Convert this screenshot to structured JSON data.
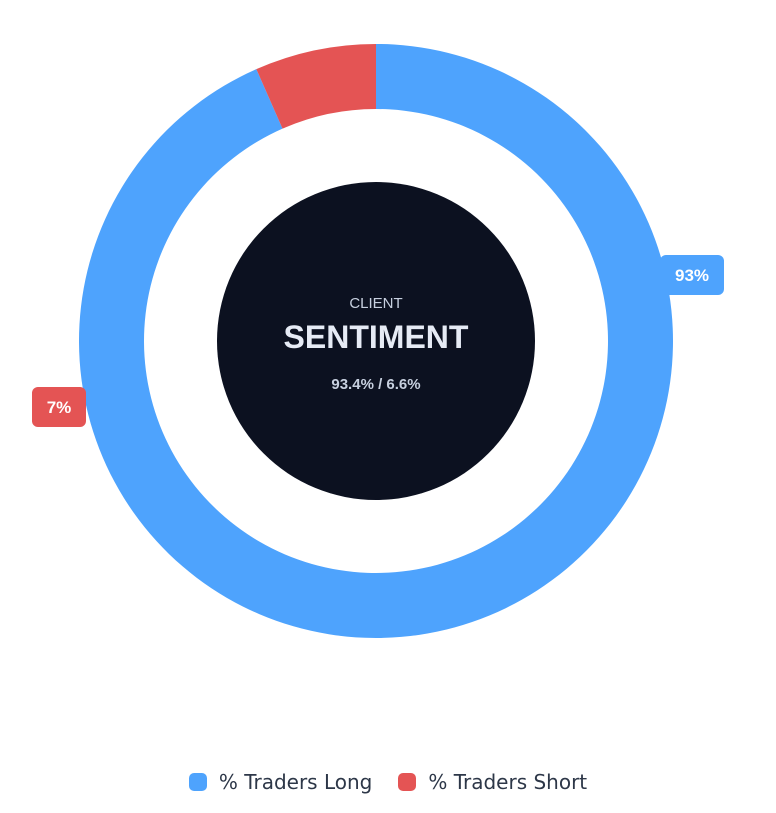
{
  "chart_data": {
    "type": "pie",
    "variant": "donut",
    "center": {
      "kicker": "CLIENT",
      "title": "SENTIMENT",
      "subtitle": "93.4% / 6.6%"
    },
    "series": [
      {
        "name": "% Traders Long",
        "value": 93.4,
        "label": "93%",
        "color": "#4ea3fd"
      },
      {
        "name": "% Traders Short",
        "value": 6.6,
        "label": "7%",
        "color": "#e45454"
      }
    ],
    "start_angle_deg": 270,
    "legend_position": "bottom",
    "center_color": "#0c1120",
    "center_text_color": "#e6ebf5",
    "center_subtext_color": "#c7d0df"
  }
}
